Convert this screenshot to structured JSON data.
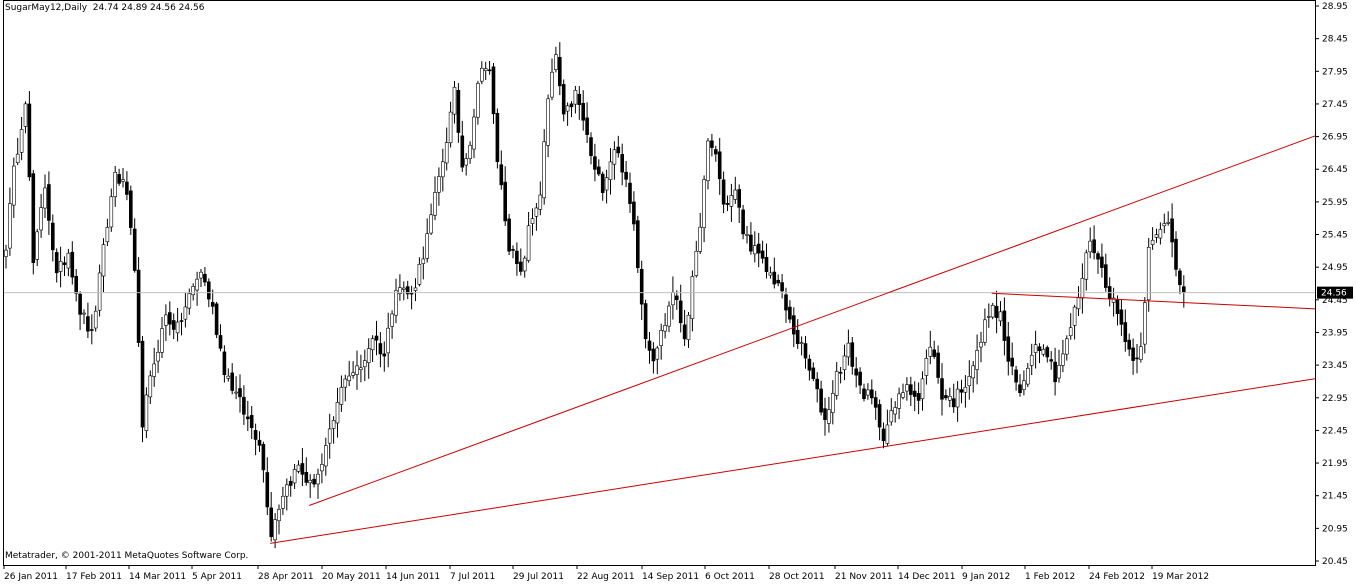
{
  "header": {
    "symbol": "SugarMay12,Daily",
    "ohlc": "24.74 24.89 24.56 24.56"
  },
  "footer": {
    "copyright": "Metatrader, © 2001-2011 MetaQuotes Software Corp."
  },
  "colors": {
    "background": "#ffffff",
    "frame": "#000000",
    "bull_body": "#ffffff",
    "bear_body": "#000000",
    "trendline": "#cc0000",
    "price_line": "#c0c0c0",
    "price_label_bg": "#000000",
    "price_label_text": "#ffffff"
  },
  "chart_data": {
    "type": "candlestick",
    "symbol": "SugarMay12",
    "timeframe": "Daily",
    "current_price": 24.56,
    "current_price_label": "24.56",
    "ylim": [
      20.45,
      28.95
    ],
    "y_ticks": [
      "28.95",
      "28.45",
      "27.95",
      "27.45",
      "26.95",
      "26.45",
      "25.95",
      "25.45",
      "24.95",
      "24.45",
      "23.95",
      "23.45",
      "22.95",
      "22.45",
      "21.95",
      "21.45",
      "20.95",
      "20.45"
    ],
    "x_ticks": [
      "26 Jan 2011",
      "17 Feb 2011",
      "14 Mar 2011",
      "5 Apr 2011",
      "28 Apr 2011",
      "20 May 2011",
      "14 Jun 2011",
      "7 Jul 2011",
      "29 Jul 2011",
      "22 Aug 2011",
      "14 Sep 2011",
      "6 Oct 2011",
      "28 Oct 2011",
      "21 Nov 2011",
      "14 Dec 2011",
      "9 Jan 2012",
      "1 Feb 2012",
      "24 Feb 2012",
      "19 Mar 2012"
    ],
    "anchors": [
      {
        "i": 0,
        "p": 25.3
      },
      {
        "i": 2,
        "p": 26.4
      },
      {
        "i": 5,
        "p": 27.55
      },
      {
        "i": 7,
        "p": 25.0
      },
      {
        "i": 10,
        "p": 26.2
      },
      {
        "i": 13,
        "p": 24.8
      },
      {
        "i": 16,
        "p": 25.2
      },
      {
        "i": 19,
        "p": 24.3
      },
      {
        "i": 22,
        "p": 23.9
      },
      {
        "i": 25,
        "p": 25.2
      },
      {
        "i": 28,
        "p": 26.4
      },
      {
        "i": 31,
        "p": 26.1
      },
      {
        "i": 33,
        "p": 24.8
      },
      {
        "i": 35,
        "p": 22.6
      },
      {
        "i": 38,
        "p": 23.5
      },
      {
        "i": 41,
        "p": 24.2
      },
      {
        "i": 44,
        "p": 24.0
      },
      {
        "i": 47,
        "p": 24.5
      },
      {
        "i": 50,
        "p": 24.9
      },
      {
        "i": 53,
        "p": 24.3
      },
      {
        "i": 56,
        "p": 23.4
      },
      {
        "i": 59,
        "p": 23.0
      },
      {
        "i": 62,
        "p": 22.6
      },
      {
        "i": 65,
        "p": 22.3
      },
      {
        "i": 68,
        "p": 20.9
      },
      {
        "i": 71,
        "p": 21.5
      },
      {
        "i": 75,
        "p": 21.9
      },
      {
        "i": 78,
        "p": 21.6
      },
      {
        "i": 81,
        "p": 21.9
      },
      {
        "i": 84,
        "p": 22.6
      },
      {
        "i": 87,
        "p": 23.3
      },
      {
        "i": 91,
        "p": 23.4
      },
      {
        "i": 94,
        "p": 23.9
      },
      {
        "i": 97,
        "p": 23.6
      },
      {
        "i": 100,
        "p": 24.7
      },
      {
        "i": 104,
        "p": 24.5
      },
      {
        "i": 108,
        "p": 25.4
      },
      {
        "i": 112,
        "p": 26.6
      },
      {
        "i": 115,
        "p": 27.6
      },
      {
        "i": 117,
        "p": 26.5
      },
      {
        "i": 119,
        "p": 26.9
      },
      {
        "i": 122,
        "p": 28.1
      },
      {
        "i": 124,
        "p": 27.9
      },
      {
        "i": 126,
        "p": 26.6
      },
      {
        "i": 129,
        "p": 25.3
      },
      {
        "i": 132,
        "p": 24.8
      },
      {
        "i": 134,
        "p": 25.5
      },
      {
        "i": 137,
        "p": 26.1
      },
      {
        "i": 139,
        "p": 27.5
      },
      {
        "i": 141,
        "p": 28.2
      },
      {
        "i": 143,
        "p": 27.2
      },
      {
        "i": 146,
        "p": 27.6
      },
      {
        "i": 148,
        "p": 27.2
      },
      {
        "i": 151,
        "p": 26.4
      },
      {
        "i": 153,
        "p": 26.2
      },
      {
        "i": 156,
        "p": 26.8
      },
      {
        "i": 158,
        "p": 26.5
      },
      {
        "i": 161,
        "p": 25.6
      },
      {
        "i": 164,
        "p": 23.9
      },
      {
        "i": 166,
        "p": 23.6
      },
      {
        "i": 169,
        "p": 24.1
      },
      {
        "i": 171,
        "p": 24.6
      },
      {
        "i": 174,
        "p": 23.9
      },
      {
        "i": 177,
        "p": 25.1
      },
      {
        "i": 180,
        "p": 26.8
      },
      {
        "i": 182,
        "p": 26.7
      },
      {
        "i": 184,
        "p": 25.9
      },
      {
        "i": 187,
        "p": 26.1
      },
      {
        "i": 189,
        "p": 25.5
      },
      {
        "i": 192,
        "p": 25.2
      },
      {
        "i": 195,
        "p": 24.9
      },
      {
        "i": 198,
        "p": 24.7
      },
      {
        "i": 201,
        "p": 24.1
      },
      {
        "i": 204,
        "p": 23.7
      },
      {
        "i": 207,
        "p": 23.2
      },
      {
        "i": 210,
        "p": 22.6
      },
      {
        "i": 213,
        "p": 23.3
      },
      {
        "i": 216,
        "p": 23.7
      },
      {
        "i": 219,
        "p": 23.1
      },
      {
        "i": 222,
        "p": 22.9
      },
      {
        "i": 225,
        "p": 22.4
      },
      {
        "i": 228,
        "p": 22.8
      },
      {
        "i": 231,
        "p": 23.2
      },
      {
        "i": 234,
        "p": 22.9
      },
      {
        "i": 237,
        "p": 23.8
      },
      {
        "i": 240,
        "p": 23.0
      },
      {
        "i": 243,
        "p": 22.9
      },
      {
        "i": 246,
        "p": 23.2
      },
      {
        "i": 249,
        "p": 23.6
      },
      {
        "i": 252,
        "p": 24.3
      },
      {
        "i": 255,
        "p": 24.2
      },
      {
        "i": 257,
        "p": 23.5
      },
      {
        "i": 260,
        "p": 23.0
      },
      {
        "i": 263,
        "p": 23.7
      },
      {
        "i": 266,
        "p": 23.8
      },
      {
        "i": 269,
        "p": 23.3
      },
      {
        "i": 272,
        "p": 23.8
      },
      {
        "i": 275,
        "p": 24.5
      },
      {
        "i": 278,
        "p": 25.4
      },
      {
        "i": 281,
        "p": 24.9
      },
      {
        "i": 284,
        "p": 24.4
      },
      {
        "i": 287,
        "p": 23.9
      },
      {
        "i": 289,
        "p": 23.5
      },
      {
        "i": 291,
        "p": 23.8
      },
      {
        "i": 293,
        "p": 25.2
      },
      {
        "i": 296,
        "p": 25.5
      },
      {
        "i": 298,
        "p": 25.7
      },
      {
        "i": 300,
        "p": 25.0
      },
      {
        "i": 302,
        "p": 24.56
      }
    ],
    "trendlines": [
      {
        "name": "upper-resistance",
        "from": {
          "i": 78,
          "p": 21.3
        },
        "to": {
          "i": 340,
          "p": 27.05
        }
      },
      {
        "name": "lower-support",
        "from": {
          "i": 68,
          "p": 20.72
        },
        "to": {
          "i": 340,
          "p": 23.28
        }
      },
      {
        "name": "horizontal-resistance",
        "from": {
          "i": 253,
          "p": 24.55
        },
        "to": {
          "i": 340,
          "p": 24.3
        }
      }
    ],
    "grid": false,
    "legend": "none"
  }
}
